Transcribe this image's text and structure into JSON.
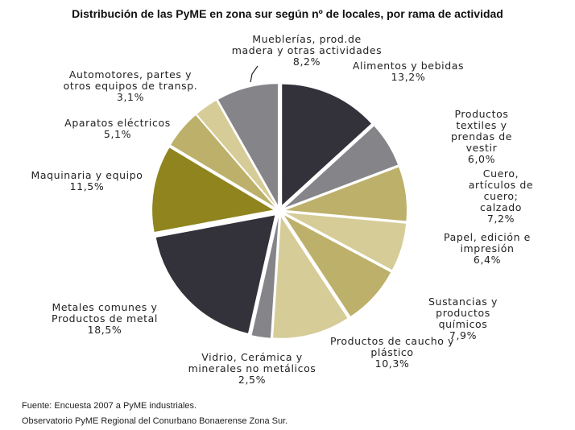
{
  "chart_data": {
    "type": "pie",
    "title": "Distribución de las PyME en zona sur según nº de locales, por rama de actividad",
    "categories": [
      "Alimentos y bebidas",
      "Productos textiles y\nprendas de vestir",
      "Cuero, artículos de cuero;\ncalzado",
      "Papel, edición e\nimpresión",
      "Sustancias y productos\nquímicos",
      "Productos de caucho y\nplástico",
      "Vidrio, Cerámica y\nminerales no metálicos",
      "Metales comunes y\nProductos de metal",
      "Maquinaria y equipo",
      "Aparatos eléctricos",
      "Automotores, partes y\notros equipos de transp.",
      "Mueblerías, prod.de\nmadera y otras actividades"
    ],
    "values": [
      13.2,
      6.0,
      7.2,
      6.4,
      7.9,
      10.3,
      2.5,
      18.5,
      11.5,
      5.1,
      3.1,
      8.2
    ],
    "value_labels": [
      "13,2%",
      "6,0%",
      "7,2%",
      "6,4%",
      "7,9%",
      "10,3%",
      "2,5%",
      "18,5%",
      "11,5%",
      "5,1%",
      "3,1%",
      "8,2%"
    ],
    "colors": [
      "#33323a",
      "#858489",
      "#bdb06a",
      "#d6cc98",
      "#bdb06a",
      "#d6cc98",
      "#858489",
      "#33323a",
      "#8f841e",
      "#bdb06a",
      "#d6cc98",
      "#858489"
    ],
    "source": [
      "Fuente: Encuesta 2007 a PyME industriales.",
      "Observatorio PyME Regional del Conurbano Bonaerense Zona Sur."
    ]
  }
}
